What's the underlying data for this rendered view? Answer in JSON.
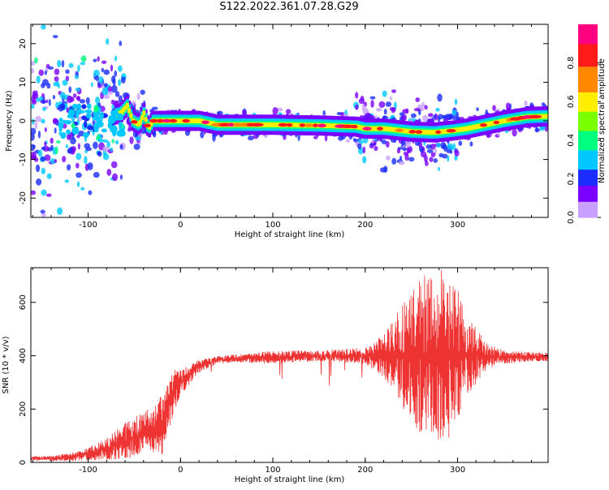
{
  "title": "S122.2022.361.07.28.G29",
  "colors": {
    "line": "#ee3333",
    "axis": "#000000"
  },
  "chart_data": [
    {
      "type": "heatmap",
      "xlabel": "Height of straight line (km)",
      "ylabel": "Frequency (Hz)",
      "xlim": [
        -162,
        398
      ],
      "ylim": [
        -25,
        25
      ],
      "xticks": [
        -100,
        0,
        100,
        200,
        300
      ],
      "yticks": [
        -20,
        -10,
        0,
        10,
        20
      ],
      "colorbar": {
        "label": "Normalized spectral amplitude",
        "range": [
          0,
          1
        ],
        "ticks": [
          "0.0",
          "0.2",
          "0.4",
          "0.6",
          "0.8"
        ],
        "tick_values": [
          0,
          0.2,
          0.4,
          0.6,
          0.8
        ],
        "colormap": "rainbow (white → violet → blue → cyan → green → yellow → orange → red → magenta)"
      },
      "ridge": {
        "x": [
          -150,
          -120,
          -100,
          -80,
          -65,
          -58,
          -52,
          -45,
          -40,
          -35,
          -30,
          -20,
          0,
          20,
          40,
          60,
          100,
          150,
          190,
          200,
          220,
          250,
          275,
          295,
          310,
          330,
          350,
          375,
          398
        ],
        "freq_hz": [
          0,
          1,
          0,
          1,
          2,
          4,
          0,
          -1,
          2,
          -2,
          0,
          0,
          0,
          0,
          -1,
          -1,
          -1,
          -1.2,
          -1.5,
          -2,
          -2,
          -2.8,
          -3,
          -2.5,
          -2,
          -1,
          0,
          1,
          1.2
        ]
      }
    },
    {
      "type": "line",
      "xlabel": "Height of straight line (km)",
      "ylabel": "SNR (10 * v/v)",
      "xlim": [
        -162,
        398
      ],
      "ylim": [
        0,
        730
      ],
      "xticks": [
        -100,
        0,
        100,
        200,
        300
      ],
      "yticks": [
        0,
        200,
        400,
        600
      ],
      "envelope": {
        "x": [
          -162,
          -140,
          -120,
          -100,
          -80,
          -60,
          -40,
          -30,
          -20,
          -15,
          -10,
          0,
          20,
          40,
          60,
          80,
          100,
          150,
          200,
          220,
          240,
          260,
          280,
          295,
          310,
          330,
          350,
          398
        ],
        "snr": [
          15,
          15,
          20,
          30,
          50,
          80,
          110,
          120,
          140,
          200,
          250,
          300,
          360,
          385,
          390,
          390,
          395,
          400,
          400,
          400,
          400,
          400,
          400,
          400,
          400,
          400,
          395,
          395
        ],
        "spread": [
          8,
          10,
          15,
          25,
          40,
          70,
          80,
          90,
          120,
          110,
          100,
          50,
          25,
          15,
          15,
          20,
          25,
          20,
          30,
          80,
          200,
          300,
          330,
          300,
          150,
          60,
          25,
          15
        ]
      }
    }
  ]
}
